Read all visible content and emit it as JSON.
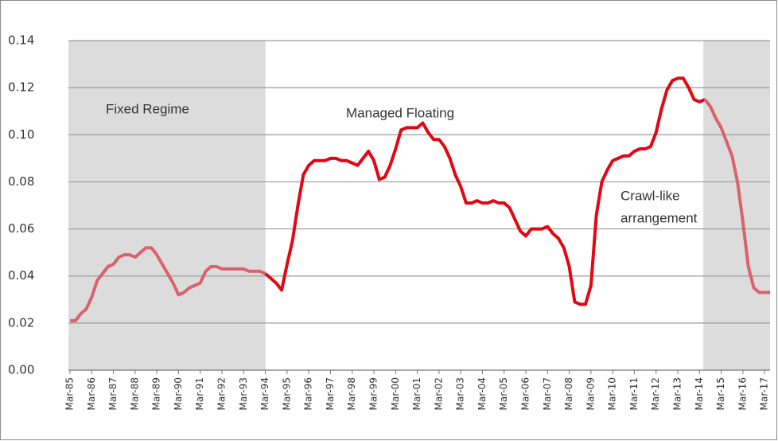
{
  "chart_data": {
    "type": "line",
    "categories": [
      "Mar-85",
      null,
      null,
      null,
      "Mar-86",
      null,
      null,
      null,
      "Mar-87",
      null,
      null,
      null,
      "Mar-88",
      null,
      null,
      null,
      "Mar-89",
      null,
      null,
      null,
      "Mar-90",
      null,
      null,
      null,
      "Mar-91",
      null,
      null,
      null,
      "Mar-92",
      null,
      null,
      null,
      "Mar-93",
      null,
      null,
      null,
      "Mar-94",
      null,
      null,
      null,
      "Mar-95",
      null,
      null,
      null,
      "Mar-96",
      null,
      null,
      null,
      "Mar-97",
      null,
      null,
      null,
      "Mar-98",
      null,
      null,
      null,
      "Mar-99",
      null,
      null,
      null,
      "Mar-00",
      null,
      null,
      null,
      "Mar-01",
      null,
      null,
      null,
      "Mar-02",
      null,
      null,
      null,
      "Mar-03",
      null,
      null,
      null,
      "Mar-04",
      null,
      null,
      null,
      "Mar-05",
      null,
      null,
      null,
      "Mar-06",
      null,
      null,
      null,
      "Mar-07",
      null,
      null,
      null,
      "Mar-08",
      null,
      null,
      null,
      "Mar-09",
      null,
      null,
      null,
      "Mar-10",
      null,
      null,
      null,
      "Mar-11",
      null,
      null,
      null,
      "Mar-12",
      null,
      null,
      null,
      "Mar-13",
      null,
      null,
      null,
      "Mar-14",
      null,
      null,
      null,
      "Mar-15",
      null,
      null,
      null,
      "Mar-16",
      null,
      null,
      null,
      "Mar-17",
      null
    ],
    "series": [
      {
        "color": "#d9626c",
        "shaded": true,
        "values": [
          0.021,
          0.021,
          0.024,
          0.026,
          0.031,
          0.038,
          0.041,
          0.044,
          0.045,
          0.048,
          0.049,
          0.049,
          0.048,
          0.05,
          0.052,
          0.052,
          0.049,
          0.045,
          0.041,
          0.037,
          0.032,
          0.033,
          0.035,
          0.036,
          0.037,
          0.042,
          0.044,
          0.044,
          0.043,
          0.043,
          0.043,
          0.043,
          0.043,
          0.042,
          0.042,
          0.042,
          0.041,
          null,
          null,
          null,
          null,
          null,
          null,
          null,
          null,
          null,
          null,
          null,
          null,
          null,
          null,
          null,
          null,
          null,
          null,
          null,
          null,
          null,
          null,
          null,
          null,
          null,
          null,
          null,
          null,
          null,
          null,
          null,
          null,
          null,
          null,
          null,
          null,
          null,
          null,
          null,
          null,
          null,
          null,
          null,
          null,
          null,
          null,
          null,
          null,
          null,
          null,
          null,
          null,
          null,
          null,
          null,
          null,
          null,
          null,
          null,
          null,
          null,
          null,
          null,
          null,
          null,
          null,
          null,
          null,
          null,
          null,
          null,
          null,
          null,
          null,
          null,
          null,
          null,
          null,
          null,
          null,
          null,
          null,
          null,
          null,
          null,
          null,
          null,
          null,
          null,
          null,
          null,
          null,
          null
        ]
      },
      {
        "color": "#e30613",
        "shaded": false,
        "values": [
          null,
          null,
          null,
          null,
          null,
          null,
          null,
          null,
          null,
          null,
          null,
          null,
          null,
          null,
          null,
          null,
          null,
          null,
          null,
          null,
          null,
          null,
          null,
          null,
          null,
          null,
          null,
          null,
          null,
          null,
          null,
          null,
          null,
          null,
          null,
          null,
          0.041,
          0.039,
          0.037,
          0.034,
          0.045,
          0.055,
          0.07,
          0.083,
          0.087,
          0.089,
          0.089,
          0.089,
          0.09,
          0.09,
          0.089,
          0.089,
          0.088,
          0.087,
          0.09,
          0.093,
          0.089,
          0.081,
          0.082,
          0.087,
          0.094,
          0.102,
          0.103,
          0.103,
          0.103,
          0.105,
          0.101,
          0.098,
          0.098,
          0.095,
          0.09,
          0.083,
          0.078,
          0.071,
          0.071,
          0.072,
          0.071,
          0.071,
          0.072,
          0.071,
          0.071,
          0.069,
          0.064,
          0.059,
          0.057,
          0.06,
          0.06,
          0.06,
          0.061,
          0.058,
          0.056,
          0.052,
          0.044,
          0.029,
          0.028,
          0.028,
          0.036,
          0.066,
          0.08,
          0.085,
          0.089,
          0.09,
          0.091,
          0.091,
          0.093,
          0.094,
          0.094,
          0.095,
          0.101,
          0.111,
          0.119,
          0.123,
          0.124,
          0.124,
          0.12,
          0.115,
          0.114,
          0.115,
          null,
          null,
          null,
          null,
          null,
          null,
          null,
          null,
          null,
          null,
          null,
          null
        ]
      },
      {
        "color": "#d9626c",
        "shaded": true,
        "values": [
          null,
          null,
          null,
          null,
          null,
          null,
          null,
          null,
          null,
          null,
          null,
          null,
          null,
          null,
          null,
          null,
          null,
          null,
          null,
          null,
          null,
          null,
          null,
          null,
          null,
          null,
          null,
          null,
          null,
          null,
          null,
          null,
          null,
          null,
          null,
          null,
          null,
          null,
          null,
          null,
          null,
          null,
          null,
          null,
          null,
          null,
          null,
          null,
          null,
          null,
          null,
          null,
          null,
          null,
          null,
          null,
          null,
          null,
          null,
          null,
          null,
          null,
          null,
          null,
          null,
          null,
          null,
          null,
          null,
          null,
          null,
          null,
          null,
          null,
          null,
          null,
          null,
          null,
          null,
          null,
          null,
          null,
          null,
          null,
          null,
          null,
          null,
          null,
          null,
          null,
          null,
          null,
          null,
          null,
          null,
          null,
          null,
          null,
          null,
          null,
          null,
          null,
          null,
          null,
          null,
          null,
          null,
          null,
          null,
          null,
          null,
          null,
          null,
          null,
          null,
          null,
          null,
          0.115,
          0.112,
          0.107,
          0.103,
          0.097,
          0.091,
          0.08,
          0.063,
          0.044,
          0.035,
          0.033,
          0.033,
          0.033
        ]
      }
    ],
    "ylim": [
      0,
      0.14
    ],
    "yticks": [
      {
        "value": 0,
        "label": "0.00"
      },
      0.02,
      0.04,
      0.06,
      0.08,
      {
        "value": 0.1,
        "label": "0.10"
      },
      0.12,
      0.14
    ],
    "grid": true,
    "annotations": [
      "Fixed Regime",
      "Managed Floating",
      "Crawl-like",
      "arrangement"
    ]
  }
}
